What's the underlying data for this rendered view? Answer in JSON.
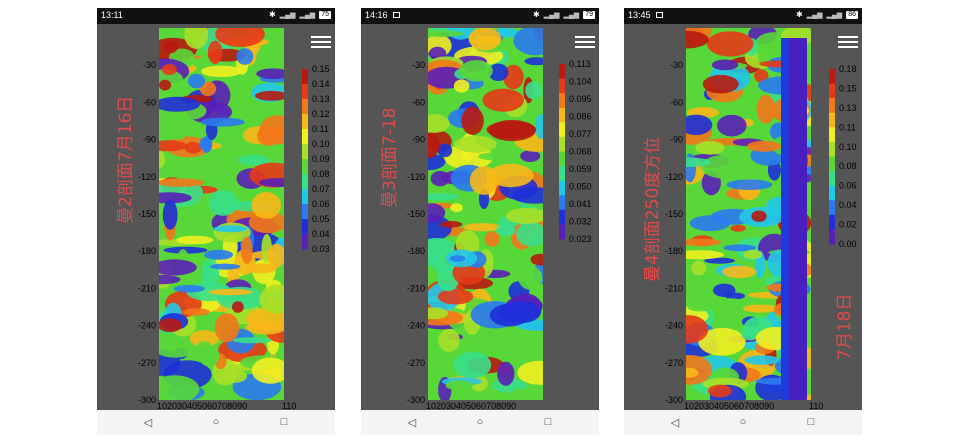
{
  "phones": [
    {
      "status": {
        "time": "13:11",
        "battery": "75",
        "has_notification": false
      },
      "title": "曼2剖面7月16日",
      "title2": "",
      "colorbar": {
        "labels": [
          "0.15",
          "0.14",
          "0.13",
          "0.12",
          "0.11",
          "0.10",
          "0.09",
          "0.08",
          "0.07",
          "0.06",
          "0.05",
          "0.04",
          "0.03"
        ],
        "min": 0.03,
        "max": 0.15
      },
      "yticks": [
        "-30",
        "-60",
        "-90",
        "-120",
        "-150",
        "-180",
        "-210",
        "-240",
        "-270",
        "-300"
      ],
      "xticks": "102030405060708090",
      "xtick_last": "110",
      "seed": 3
    },
    {
      "status": {
        "time": "14:16",
        "battery": "79",
        "has_notification": true
      },
      "title": "曼3剖面7-18",
      "title2": "",
      "colorbar": {
        "labels": [
          "0.113",
          "0.104",
          "0.095",
          "0.086",
          "0.077",
          "0.068",
          "0.059",
          "0.050",
          "0.041",
          "0.032",
          "0.023"
        ],
        "min": 0.023,
        "max": 0.113
      },
      "yticks": [
        "-30",
        "-60",
        "-90",
        "-120",
        "-150",
        "-180",
        "-210",
        "-240",
        "-270",
        "-300"
      ],
      "xticks": "102030405060708090",
      "xtick_last": "",
      "seed": 7
    },
    {
      "status": {
        "time": "13:45",
        "battery": "86",
        "has_notification": true
      },
      "title": "曼4剖面250度方位",
      "title2": "7月18日",
      "colorbar": {
        "labels": [
          "0.18",
          "0.15",
          "0.13",
          "0.11",
          "0.10",
          "0.08",
          "0.06",
          "0.04",
          "0.02",
          "0.00"
        ],
        "min": 0.0,
        "max": 0.18
      },
      "yticks": [
        "-30",
        "-60",
        "-90",
        "-120",
        "-150",
        "-180",
        "-210",
        "-240",
        "-270",
        "-300"
      ],
      "xticks": "102030405060708090",
      "xtick_last": "110",
      "seed": 11
    }
  ],
  "colors": {
    "colormap": [
      "#5a1fb8",
      "#1f2fd8",
      "#2a7bf0",
      "#22c8e8",
      "#39e08a",
      "#58d838",
      "#a8e028",
      "#f0f020",
      "#f8b818",
      "#f27818",
      "#e63a18",
      "#b81a10"
    ]
  },
  "nav": {
    "back_glyph": "◁",
    "home_glyph": "○",
    "recents_glyph": "□"
  }
}
